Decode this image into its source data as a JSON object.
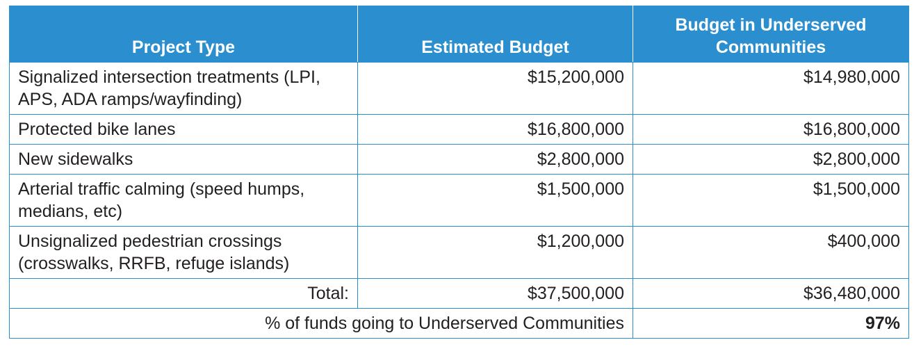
{
  "table": {
    "header": [
      "Project Type",
      "Estimated Budget",
      "Budget in Underserved Communities"
    ],
    "rows": [
      [
        "Signalized intersection treatments (LPI, APS, ADA ramps/wayfinding)",
        "$15,200,000",
        "$14,980,000"
      ],
      [
        "Protected bike lanes",
        "$16,800,000",
        "$16,800,000"
      ],
      [
        "New sidewalks",
        "$2,800,000",
        "$2,800,000"
      ],
      [
        "Arterial traffic calming (speed humps, medians, etc)",
        "$1,500,000",
        "$1,500,000"
      ],
      [
        "Unsignalized pedestrian crossings (crosswalks, RRFB, refuge islands)",
        "$1,200,000",
        "$400,000"
      ]
    ],
    "total": {
      "label": "Total:",
      "values": [
        "$37,500,000",
        "$36,480,000"
      ]
    },
    "summary": {
      "label": "% of funds going to Underserved Communities",
      "value": "97%"
    }
  }
}
